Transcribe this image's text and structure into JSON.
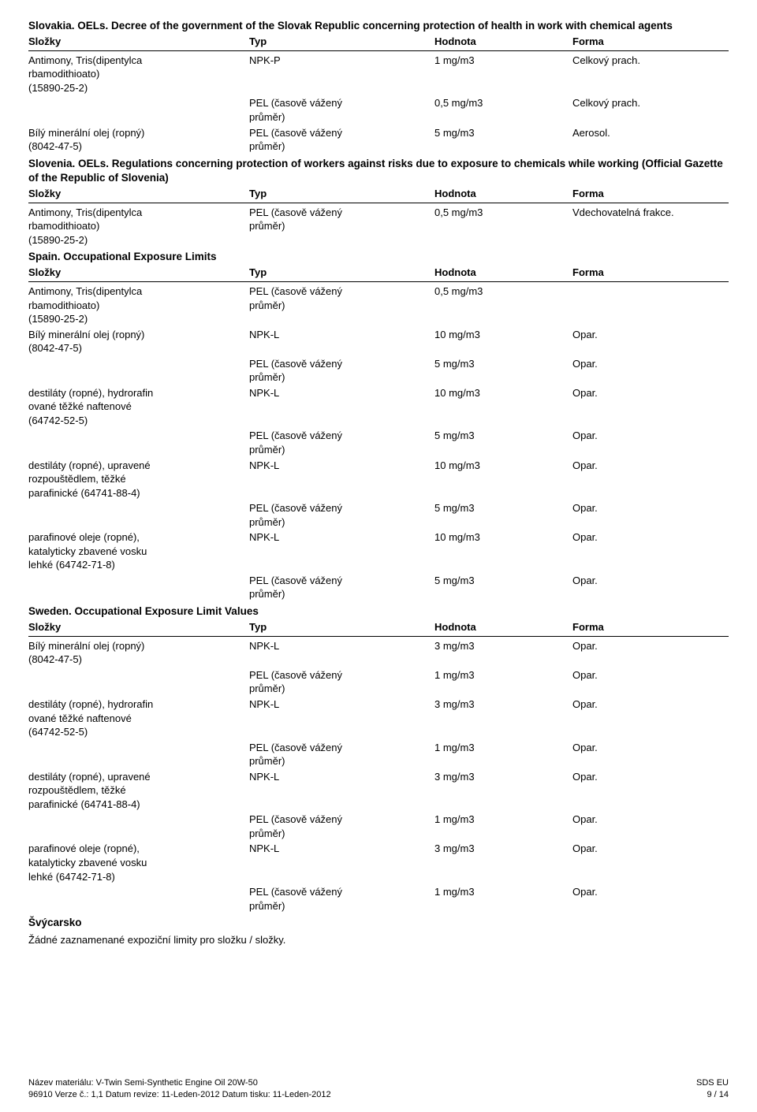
{
  "slovakia": {
    "title": "Slovakia. OELs. Decree of the government of the Slovak Republic concerning protection of health in work with chemical agents",
    "headers": {
      "slozky": "Složky",
      "typ": "Typ",
      "hodnota": "Hodnota",
      "forma": "Forma"
    },
    "rows": [
      {
        "slozky_lines": [
          "Antimony, Tris(dipentylca",
          "rbamodithioato)",
          "(15890-25-2)"
        ],
        "typ_lines": [
          "NPK-P"
        ],
        "hodnota": "1 mg/m3",
        "forma": "Celkový prach."
      },
      {
        "slozky_lines": [
          ""
        ],
        "typ_lines": [
          "PEL (časově vážený",
          "průměr)"
        ],
        "hodnota": "0,5 mg/m3",
        "forma": "Celkový prach."
      },
      {
        "slozky_lines": [
          "Bílý minerální olej (ropný)",
          "(8042-47-5)"
        ],
        "typ_lines": [
          "PEL (časově vážený",
          "průměr)"
        ],
        "hodnota": "5 mg/m3",
        "forma": "Aerosol."
      }
    ]
  },
  "slovenia": {
    "title": "Slovenia. OELs. Regulations concerning protection of workers against risks due to exposure to chemicals while working (Official Gazette of the Republic of Slovenia)",
    "headers": {
      "slozky": "Složky",
      "typ": "Typ",
      "hodnota": "Hodnota",
      "forma": "Forma"
    },
    "rows": [
      {
        "slozky_lines": [
          "Antimony, Tris(dipentylca",
          "rbamodithioato)",
          "(15890-25-2)"
        ],
        "typ_lines": [
          "PEL (časově vážený",
          "průměr)"
        ],
        "hodnota": "0,5 mg/m3",
        "forma": "Vdechovatelná frakce."
      }
    ]
  },
  "spain": {
    "title": "Spain. Occupational Exposure Limits",
    "headers": {
      "slozky": "Složky",
      "typ": "Typ",
      "hodnota": "Hodnota",
      "forma": "Forma"
    },
    "rows": [
      {
        "slozky_lines": [
          "Antimony, Tris(dipentylca",
          "rbamodithioato)",
          "(15890-25-2)"
        ],
        "typ_lines": [
          "PEL (časově vážený",
          "průměr)"
        ],
        "hodnota": "0,5 mg/m3",
        "forma": ""
      },
      {
        "slozky_lines": [
          "Bílý minerální olej (ropný)",
          "(8042-47-5)"
        ],
        "typ_lines": [
          "NPK-L"
        ],
        "hodnota": "10 mg/m3",
        "forma": "Opar."
      },
      {
        "slozky_lines": [
          ""
        ],
        "typ_lines": [
          "PEL (časově vážený",
          "průměr)"
        ],
        "hodnota": "5 mg/m3",
        "forma": "Opar."
      },
      {
        "slozky_lines": [
          "destiláty (ropné), hydrorafin",
          "ované těžké naftenové",
          "(64742-52-5)"
        ],
        "typ_lines": [
          "NPK-L"
        ],
        "hodnota": "10 mg/m3",
        "forma": "Opar."
      },
      {
        "slozky_lines": [
          ""
        ],
        "typ_lines": [
          "PEL (časově vážený",
          "průměr)"
        ],
        "hodnota": "5 mg/m3",
        "forma": "Opar."
      },
      {
        "slozky_lines": [
          "destiláty (ropné), upravené",
          "rozpouštědlem, těžké",
          "parafinické (64741-88-4)"
        ],
        "typ_lines": [
          "NPK-L"
        ],
        "hodnota": "10 mg/m3",
        "forma": "Opar."
      },
      {
        "slozky_lines": [
          ""
        ],
        "typ_lines": [
          "PEL (časově vážený",
          "průměr)"
        ],
        "hodnota": "5 mg/m3",
        "forma": "Opar."
      },
      {
        "slozky_lines": [
          "parafinové oleje (ropné),",
          "katalyticky zbavené vosku",
          "lehké (64742-71-8)"
        ],
        "typ_lines": [
          "NPK-L"
        ],
        "hodnota": "10 mg/m3",
        "forma": "Opar."
      },
      {
        "slozky_lines": [
          ""
        ],
        "typ_lines": [
          "PEL (časově vážený",
          "průměr)"
        ],
        "hodnota": "5 mg/m3",
        "forma": "Opar."
      }
    ]
  },
  "sweden": {
    "title": "Sweden. Occupational Exposure Limit Values",
    "headers": {
      "slozky": "Složky",
      "typ": "Typ",
      "hodnota": "Hodnota",
      "forma": "Forma"
    },
    "rows": [
      {
        "slozky_lines": [
          "Bílý minerální olej (ropný)",
          "(8042-47-5)"
        ],
        "typ_lines": [
          "NPK-L"
        ],
        "hodnota": "3 mg/m3",
        "forma": "Opar."
      },
      {
        "slozky_lines": [
          ""
        ],
        "typ_lines": [
          "PEL (časově vážený",
          "průměr)"
        ],
        "hodnota": "1 mg/m3",
        "forma": "Opar."
      },
      {
        "slozky_lines": [
          "destiláty (ropné), hydrorafin",
          "ované těžké naftenové",
          "(64742-52-5)"
        ],
        "typ_lines": [
          "NPK-L"
        ],
        "hodnota": "3 mg/m3",
        "forma": "Opar."
      },
      {
        "slozky_lines": [
          ""
        ],
        "typ_lines": [
          "PEL (časově vážený",
          "průměr)"
        ],
        "hodnota": "1 mg/m3",
        "forma": "Opar."
      },
      {
        "slozky_lines": [
          "destiláty (ropné), upravené",
          "rozpouštědlem, těžké",
          "parafinické (64741-88-4)"
        ],
        "typ_lines": [
          "NPK-L"
        ],
        "hodnota": "3 mg/m3",
        "forma": "Opar."
      },
      {
        "slozky_lines": [
          ""
        ],
        "typ_lines": [
          "PEL (časově vážený",
          "průměr)"
        ],
        "hodnota": "1 mg/m3",
        "forma": "Opar."
      },
      {
        "slozky_lines": [
          "parafinové oleje (ropné),",
          "katalyticky zbavené vosku",
          "lehké (64742-71-8)"
        ],
        "typ_lines": [
          "NPK-L"
        ],
        "hodnota": "3 mg/m3",
        "forma": "Opar."
      },
      {
        "slozky_lines": [
          ""
        ],
        "typ_lines": [
          "PEL (časově vážený",
          "průměr)"
        ],
        "hodnota": "1 mg/m3",
        "forma": "Opar."
      }
    ]
  },
  "switzerland": {
    "title": "Švýcarsko",
    "note": "Žádné zaznamenané expoziční limity pro složku / složky."
  },
  "footer": {
    "material": "Název materiálu: V-Twin Semi-Synthetic Engine Oil 20W-50",
    "line2": "96910    Verze č.: 1,1    Datum revize: 11-Leden-2012    Datum tisku: 11-Leden-2012",
    "right1": "SDS EU",
    "right2": "9 / 14"
  }
}
